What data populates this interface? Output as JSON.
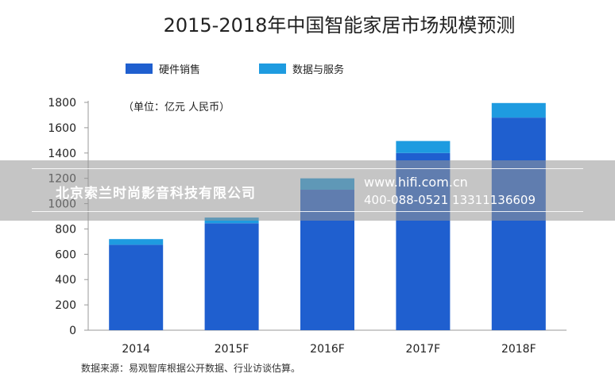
{
  "chart_data": {
    "type": "bar",
    "stacked": true,
    "title": "2015-2018年中国智能家居市场规模预测",
    "unit_note": "（单位：亿元 人民币）",
    "categories": [
      "2014",
      "2015F",
      "2016F",
      "2017F",
      "2018F"
    ],
    "series": [
      {
        "name": "硬件销售",
        "color": "#1f5fcf",
        "values": [
          675,
          845,
          1110,
          1400,
          1680
        ]
      },
      {
        "name": "数据与服务",
        "color": "#1e9be0",
        "values": [
          45,
          45,
          90,
          95,
          115
        ]
      }
    ],
    "ylim": [
      0,
      1800
    ],
    "yticks": [
      0,
      200,
      400,
      600,
      800,
      1000,
      1200,
      1400,
      1600,
      1800
    ],
    "xlabel": "",
    "ylabel": "",
    "legend_position": "top-left",
    "grid": false,
    "source": "数据来源：易观智库根据公开数据、行业访谈估算。"
  },
  "watermark": {
    "company": "北京索兰时尚影音科技有限公司",
    "url": "www.hifi.com.cn",
    "phone": "400-088-0521  13311136609"
  }
}
